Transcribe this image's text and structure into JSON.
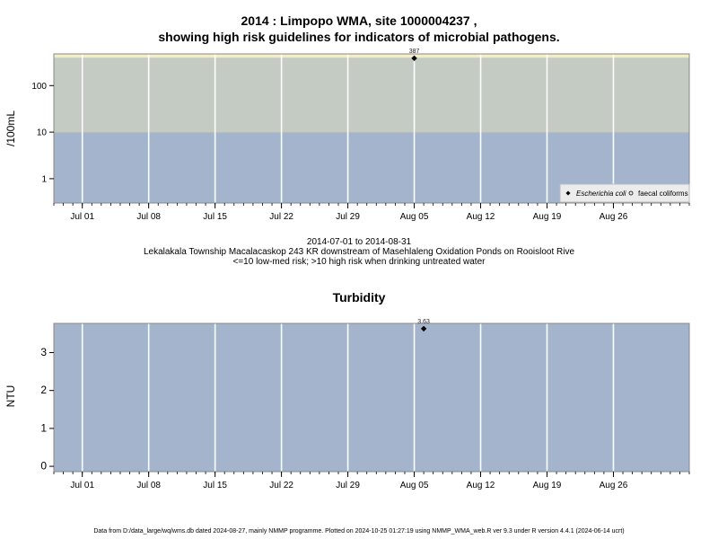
{
  "header": {
    "title_line1": "2014 : Limpopo WMA, site 1000004237 ,",
    "title_line2": "showing high risk guidelines for indicators of microbial pathogens."
  },
  "caption": {
    "line1": "2014-07-01 to 2014-08-31",
    "line2": "Lekalakala Township Macalacaskop 243 KR downstream of Masehlaleng Oxidation Ponds on Rooisloot Rive",
    "line3": "<=10 low-med risk; >10 high risk when drinking untreated water"
  },
  "footer": {
    "text": "Data from D:/data_large/wq/wms.db dated 2024-08-27, mainly NMMP programme. Plotted on 2024-10-25 01:27:19 using NMMP_WMA_web.R ver 9.3 under R version 4.4.1 (2024-06-14 ucrt)"
  },
  "colors": {
    "low_risk_band": "#a3b4cc",
    "high_risk_band": "#c4cbc3",
    "top_band": "#f3efc2",
    "grid": "#ffffff",
    "point": "#000000"
  },
  "chart_data": [
    {
      "type": "scatter",
      "title": "2014 : Limpopo WMA, site 1000004237 , showing high risk guidelines for indicators of microbial pathogens.",
      "ylabel": "/100mL",
      "yscale": "log",
      "yticks": [
        "1",
        "10",
        "100"
      ],
      "xticks": [
        "Jul 01",
        "Jul 08",
        "Jul 15",
        "Jul 22",
        "Jul 29",
        "Aug 05",
        "Aug 12",
        "Aug 19",
        "Aug 26"
      ],
      "xlim": [
        "2014-06-28",
        "2014-09-03"
      ],
      "ylim": [
        0.3,
        480
      ],
      "bands": [
        {
          "from": 0.3,
          "to": 10,
          "color": "#a3b4cc"
        },
        {
          "from": 10,
          "to": 400,
          "color": "#c4cbc3"
        },
        {
          "from": 400,
          "to": 480,
          "color": "#f3efc2"
        }
      ],
      "series": [
        {
          "name": "Escherichia coli",
          "marker": "diamond",
          "points": [
            {
              "x": "2014-08-05",
              "y": 387,
              "label": "387"
            }
          ]
        },
        {
          "name": "faecal coliforms",
          "marker": "circle-open",
          "points": []
        }
      ],
      "legend": {
        "position": "bottom-right",
        "labels": [
          "Escherichia coli",
          "faecal coliforms"
        ]
      },
      "grid": true
    },
    {
      "type": "scatter",
      "title": "Turbidity",
      "ylabel": "NTU",
      "yticks": [
        "0",
        "1",
        "2",
        "3"
      ],
      "xticks": [
        "Jul 01",
        "Jul 08",
        "Jul 15",
        "Jul 22",
        "Jul 29",
        "Aug 05",
        "Aug 12",
        "Aug 19",
        "Aug 26"
      ],
      "xlim": [
        "2014-06-28",
        "2014-09-03"
      ],
      "ylim": [
        -0.14,
        3.77
      ],
      "series": [
        {
          "name": "",
          "marker": "diamond",
          "points": [
            {
              "x": "2014-08-06",
              "y": 3.63,
              "label": "3.63"
            }
          ]
        }
      ],
      "grid": true
    }
  ]
}
